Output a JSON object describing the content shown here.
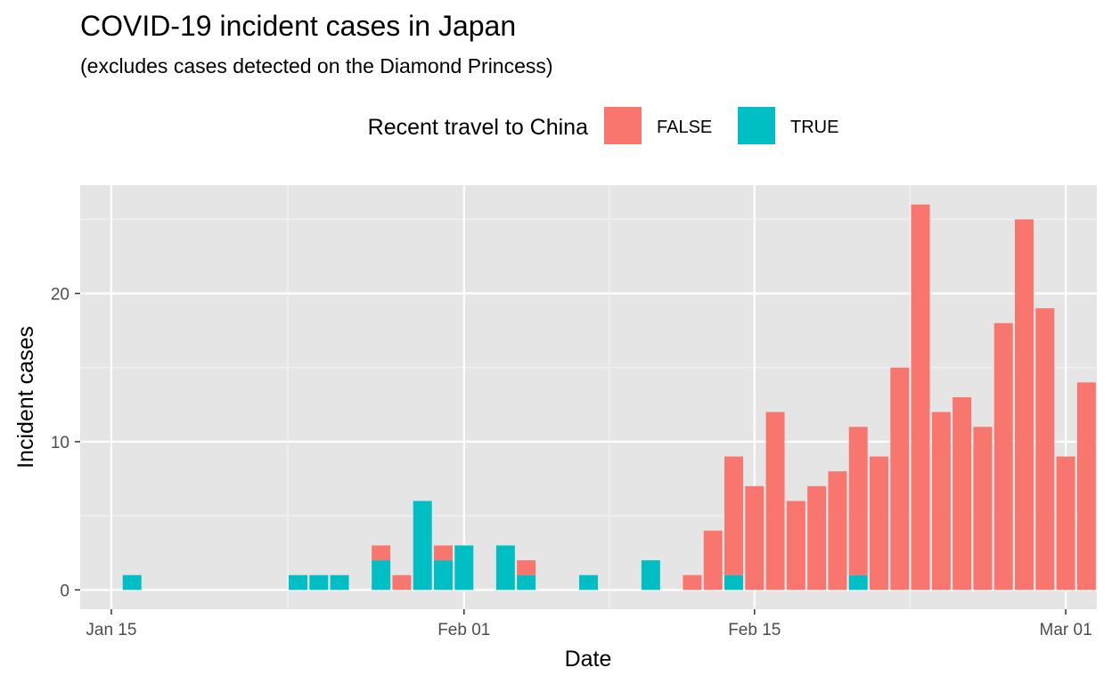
{
  "chart_data": {
    "type": "bar",
    "stacked": true,
    "title": "COVID-19 incident cases in Japan",
    "subtitle": "(excludes cases detected on the Diamond Princess)",
    "xlabel": "Date",
    "ylabel": "Incident cases",
    "legend": {
      "title": "Recent travel to China",
      "position": "top"
    },
    "x_tick_labels": [
      "Jan 15",
      "Feb 01",
      "Feb 15",
      "Mar 01"
    ],
    "x_tick_dates": [
      "2020-01-15",
      "2020-02-01",
      "2020-02-15",
      "2020-03-01"
    ],
    "y_ticks": [
      0,
      10,
      20
    ],
    "ylim": [
      -1.3,
      27.3
    ],
    "xlim": [
      "2020-01-14",
      "2020-03-02"
    ],
    "grid": true,
    "panel_background": "#e5e5e5",
    "series": [
      {
        "name": "FALSE",
        "color": "#f8766d",
        "points": [
          [
            "2020-01-28",
            1
          ],
          [
            "2020-01-29",
            1
          ],
          [
            "2020-01-31",
            1
          ],
          [
            "2020-02-04",
            1
          ],
          [
            "2020-02-12",
            1
          ],
          [
            "2020-02-13",
            4
          ],
          [
            "2020-02-14",
            8
          ],
          [
            "2020-02-15",
            7
          ],
          [
            "2020-02-16",
            12
          ],
          [
            "2020-02-17",
            6
          ],
          [
            "2020-02-18",
            7
          ],
          [
            "2020-02-19",
            8
          ],
          [
            "2020-02-20",
            10
          ],
          [
            "2020-02-21",
            9
          ],
          [
            "2020-02-22",
            15
          ],
          [
            "2020-02-23",
            26
          ],
          [
            "2020-02-24",
            12
          ],
          [
            "2020-02-25",
            13
          ],
          [
            "2020-02-26",
            11
          ],
          [
            "2020-02-27",
            18
          ],
          [
            "2020-02-28",
            25
          ],
          [
            "2020-02-29",
            19
          ],
          [
            "2020-03-01",
            9
          ],
          [
            "2020-03-02",
            14
          ]
        ]
      },
      {
        "name": "TRUE",
        "color": "#00bfc4",
        "points": [
          [
            "2020-01-16",
            1
          ],
          [
            "2020-01-24",
            1
          ],
          [
            "2020-01-25",
            1
          ],
          [
            "2020-01-26",
            1
          ],
          [
            "2020-01-28",
            2
          ],
          [
            "2020-01-30",
            6
          ],
          [
            "2020-01-31",
            2
          ],
          [
            "2020-02-01",
            3
          ],
          [
            "2020-02-03",
            3
          ],
          [
            "2020-02-04",
            1
          ],
          [
            "2020-02-07",
            1
          ],
          [
            "2020-02-10",
            2
          ],
          [
            "2020-02-14",
            1
          ],
          [
            "2020-02-20",
            1
          ]
        ]
      }
    ]
  }
}
